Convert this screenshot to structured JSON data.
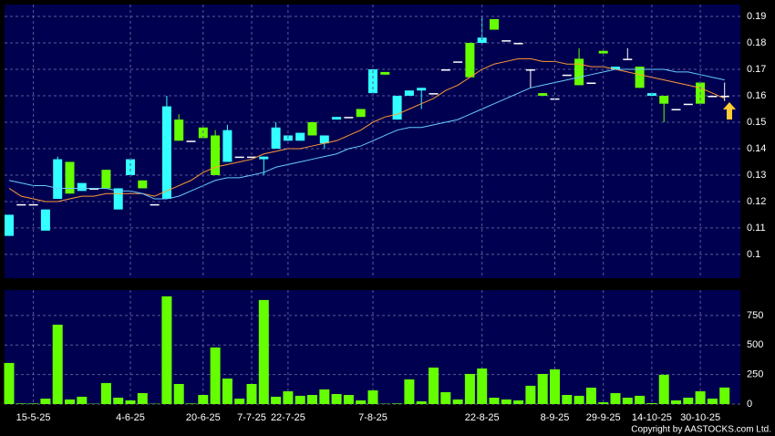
{
  "chart_data": [
    {
      "type": "candlestick",
      "open": [
        0.107,
        0.119,
        0.119,
        0.109,
        0.121,
        0.135,
        0.124,
        0.125,
        0.132,
        0.117,
        0.13,
        0.128,
        0.119,
        0.121,
        0.151,
        0.143,
        0.148,
        0.145,
        0.135,
        0.137,
        0.137,
        0.136,
        0.14,
        0.143,
        0.143,
        0.15,
        0.142,
        0.151,
        0.152,
        0.155,
        0.161,
        0.169,
        0.151,
        0.16,
        0.162,
        0.161,
        0.17,
        0.173,
        0.18,
        0.18,
        0.189,
        0.181,
        0.18,
        0.17,
        0.161,
        0.159,
        0.168,
        0.174,
        0.165,
        0.177,
        0.17,
        0.174,
        0.171,
        0.16,
        0.16,
        0.155,
        0.157,
        0.165,
        0.16,
        0.16
      ],
      "high": [
        0.115,
        0.119,
        0.119,
        0.117,
        0.137,
        0.135,
        0.127,
        0.125,
        0.132,
        0.125,
        0.136,
        0.128,
        0.119,
        0.16,
        0.153,
        0.143,
        0.148,
        0.147,
        0.149,
        0.137,
        0.137,
        0.137,
        0.15,
        0.145,
        0.146,
        0.15,
        0.145,
        0.152,
        0.152,
        0.155,
        0.17,
        0.169,
        0.16,
        0.162,
        0.163,
        0.161,
        0.17,
        0.173,
        0.18,
        0.19,
        0.189,
        0.181,
        0.18,
        0.17,
        0.161,
        0.159,
        0.168,
        0.178,
        0.165,
        0.177,
        0.171,
        0.178,
        0.171,
        0.161,
        0.16,
        0.155,
        0.157,
        0.165,
        0.16,
        0.165
      ],
      "low": [
        0.107,
        0.119,
        0.119,
        0.109,
        0.121,
        0.123,
        0.124,
        0.125,
        0.125,
        0.117,
        0.13,
        0.125,
        0.119,
        0.121,
        0.143,
        0.143,
        0.144,
        0.13,
        0.135,
        0.137,
        0.137,
        0.13,
        0.14,
        0.143,
        0.143,
        0.145,
        0.14,
        0.151,
        0.152,
        0.152,
        0.161,
        0.168,
        0.151,
        0.16,
        0.155,
        0.161,
        0.17,
        0.173,
        0.167,
        0.18,
        0.185,
        0.181,
        0.18,
        0.163,
        0.16,
        0.159,
        0.168,
        0.164,
        0.165,
        0.176,
        0.17,
        0.174,
        0.163,
        0.16,
        0.15,
        0.155,
        0.157,
        0.157,
        0.16,
        0.158
      ],
      "close": [
        0.115,
        0.119,
        0.119,
        0.117,
        0.136,
        0.123,
        0.127,
        0.125,
        0.125,
        0.125,
        0.136,
        0.125,
        0.119,
        0.156,
        0.143,
        0.143,
        0.144,
        0.13,
        0.147,
        0.137,
        0.137,
        0.137,
        0.148,
        0.145,
        0.146,
        0.145,
        0.145,
        0.152,
        0.152,
        0.152,
        0.17,
        0.168,
        0.16,
        0.162,
        0.163,
        0.161,
        0.17,
        0.173,
        0.167,
        0.182,
        0.185,
        0.181,
        0.18,
        0.17,
        0.16,
        0.159,
        0.168,
        0.164,
        0.165,
        0.176,
        0.171,
        0.174,
        0.163,
        0.161,
        0.157,
        0.155,
        0.157,
        0.157,
        0.16,
        0.16
      ],
      "up_color": "#33ffff",
      "down_color": "#66ff00",
      "flat_color": "#ffffff",
      "lines": [
        {
          "color": "#ff9933",
          "values": [
            0.125,
            0.122,
            0.121,
            0.12,
            0.12,
            0.121,
            0.122,
            0.122,
            0.123,
            0.123,
            0.123,
            0.123,
            0.122,
            0.124,
            0.126,
            0.128,
            0.131,
            0.133,
            0.134,
            0.135,
            0.136,
            0.138,
            0.139,
            0.14,
            0.14,
            0.141,
            0.142,
            0.143,
            0.145,
            0.147,
            0.15,
            0.152,
            0.153,
            0.155,
            0.157,
            0.159,
            0.162,
            0.164,
            0.167,
            0.17,
            0.172,
            0.173,
            0.174,
            0.174,
            0.173,
            0.173,
            0.172,
            0.172,
            0.171,
            0.171,
            0.17,
            0.169,
            0.168,
            0.167,
            0.166,
            0.165,
            0.164,
            0.163,
            0.161,
            0.159
          ]
        },
        {
          "color": "#66ccff",
          "values": [
            0.128,
            0.127,
            0.126,
            0.126,
            0.125,
            0.125,
            0.125,
            0.125,
            0.125,
            0.124,
            0.124,
            0.123,
            0.121,
            0.121,
            0.122,
            0.124,
            0.126,
            0.128,
            0.129,
            0.129,
            0.13,
            0.131,
            0.133,
            0.134,
            0.135,
            0.136,
            0.137,
            0.138,
            0.14,
            0.141,
            0.143,
            0.145,
            0.147,
            0.148,
            0.148,
            0.149,
            0.15,
            0.151,
            0.153,
            0.155,
            0.157,
            0.159,
            0.161,
            0.163,
            0.164,
            0.165,
            0.166,
            0.167,
            0.168,
            0.169,
            0.17,
            0.17,
            0.17,
            0.17,
            0.17,
            0.169,
            0.169,
            0.168,
            0.167,
            0.166
          ]
        }
      ],
      "ylim": [
        0.091,
        0.1945
      ],
      "yticks": [
        0.1,
        0.11,
        0.12,
        0.13,
        0.14,
        0.15,
        0.16,
        0.17,
        0.18,
        0.19
      ],
      "grid": true
    },
    {
      "type": "bar",
      "categories": [
        null,
        null,
        "15-5-25",
        null,
        null,
        null,
        null,
        null,
        null,
        null,
        "4-6-25",
        null,
        null,
        null,
        null,
        null,
        "20-6-25",
        null,
        null,
        null,
        "7-7-25",
        null,
        null,
        "22-7-25",
        null,
        null,
        null,
        null,
        null,
        null,
        "7-8-25",
        null,
        null,
        null,
        null,
        null,
        null,
        null,
        null,
        "22-8-25",
        null,
        null,
        null,
        null,
        null,
        "8-9-25",
        null,
        null,
        null,
        "29-9-25",
        null,
        null,
        null,
        "14-10-25",
        null,
        null,
        null,
        "30-10-25",
        null,
        null
      ],
      "values": [
        348,
        5,
        5,
        46,
        672,
        39,
        62,
        3,
        178,
        54,
        31,
        93,
        3,
        912,
        170,
        5,
        77,
        479,
        216,
        46,
        170,
        881,
        62,
        108,
        70,
        77,
        124,
        85,
        77,
        31,
        116,
        3,
        5,
        209,
        23,
        309,
        101,
        39,
        255,
        301,
        54,
        39,
        31,
        155,
        255,
        294,
        77,
        70,
        139,
        15,
        93,
        54,
        70,
        8,
        248,
        31,
        54,
        108,
        46,
        140
      ],
      "color": "#66ff00",
      "ylim": [
        0,
        965
      ],
      "yticks": [
        0,
        250,
        500,
        750
      ],
      "grid": true,
      "copyright": "Copyright by AASTOCKS.com Ltd."
    }
  ]
}
